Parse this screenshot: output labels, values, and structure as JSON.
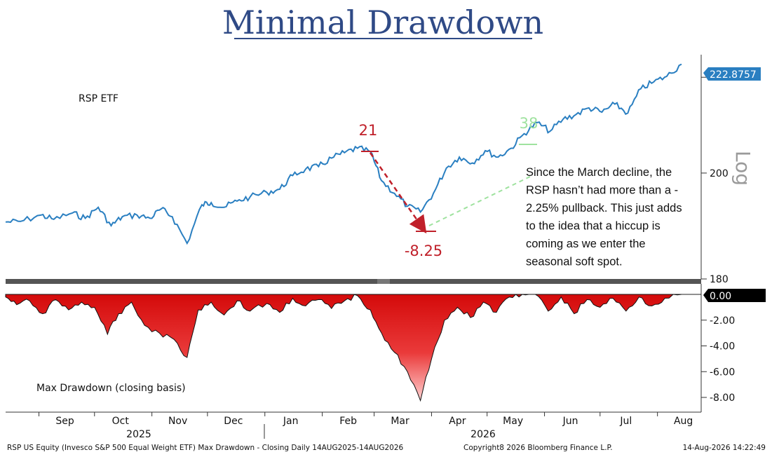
{
  "title": "Minimal Drawdown",
  "chart_data": [
    {
      "type": "line",
      "series_label": "RSP ETF",
      "scale": "log",
      "ylim": [
        180,
        225
      ],
      "y_ticks": [
        180,
        200,
        220
      ],
      "last_value": "222.8757",
      "color": "#2a7fc1",
      "x_range": [
        "2025-08-14",
        "2026-08-14"
      ],
      "points": [
        [
          "2025-08-14",
          190.5
        ],
        [
          "2025-08-22",
          190.6
        ],
        [
          "2025-09-02",
          191.8
        ],
        [
          "2025-09-09",
          191.0
        ],
        [
          "2025-09-19",
          192.2
        ],
        [
          "2025-09-26",
          191.2
        ],
        [
          "2025-10-03",
          193.3
        ],
        [
          "2025-10-10",
          189.8
        ],
        [
          "2025-10-16",
          191.5
        ],
        [
          "2025-10-24",
          191.8
        ],
        [
          "2025-10-31",
          191.2
        ],
        [
          "2025-11-06",
          193.0
        ],
        [
          "2025-11-12",
          191.5
        ],
        [
          "2025-11-20",
          186.5
        ],
        [
          "2025-11-28",
          193.8
        ],
        [
          "2025-12-03",
          194.2
        ],
        [
          "2025-12-10",
          193.3
        ],
        [
          "2025-12-17",
          194.5
        ],
        [
          "2025-12-24",
          195.3
        ],
        [
          "2026-01-02",
          196.2
        ],
        [
          "2026-01-09",
          196.8
        ],
        [
          "2026-01-16",
          199.5
        ],
        [
          "2026-01-23",
          200.8
        ],
        [
          "2026-01-30",
          201.3
        ],
        [
          "2026-02-06",
          203.0
        ],
        [
          "2026-02-13",
          204.1
        ],
        [
          "2026-02-20",
          205.0
        ],
        [
          "2026-02-27",
          204.3
        ],
        [
          "2026-03-05",
          198.5
        ],
        [
          "2026-03-12",
          196.0
        ],
        [
          "2026-03-19",
          193.5
        ],
        [
          "2026-03-26",
          192.4
        ],
        [
          "2026-04-02",
          196.0
        ],
        [
          "2026-04-09",
          201.0
        ],
        [
          "2026-04-16",
          203.2
        ],
        [
          "2026-04-23",
          202.0
        ],
        [
          "2026-04-30",
          204.5
        ],
        [
          "2026-05-07",
          203.2
        ],
        [
          "2026-05-14",
          205.0
        ],
        [
          "2026-05-21",
          208.0
        ],
        [
          "2026-05-28",
          210.3
        ],
        [
          "2026-06-04",
          208.5
        ],
        [
          "2026-06-11",
          211.0
        ],
        [
          "2026-06-18",
          212.0
        ],
        [
          "2026-06-25",
          213.4
        ],
        [
          "2026-07-02",
          212.5
        ],
        [
          "2026-07-09",
          214.2
        ],
        [
          "2026-07-16",
          212.3
        ],
        [
          "2026-07-23",
          217.5
        ],
        [
          "2026-07-30",
          219.0
        ],
        [
          "2026-08-06",
          220.2
        ],
        [
          "2026-08-14",
          222.8757
        ]
      ],
      "annotations": {
        "peak_label": "21",
        "trough_label": "-8.25",
        "rally_label": "38",
        "note": "Since the March decline, the RSP hasn’t had more than a -2.25% pullback. This just adds to the idea that a hiccup is coming as we enter the seasonal soft spot."
      },
      "side_label": "Log"
    },
    {
      "type": "area",
      "series_label": "Max Drawdown (closing basis)",
      "ylim": [
        -8.5,
        0
      ],
      "y_ticks": [
        "-2.00",
        "-4.00",
        "-6.00",
        "-8.00"
      ],
      "last_value": "0.00",
      "color": "#e02020",
      "points": [
        [
          "2025-08-14",
          -0.2
        ],
        [
          "2025-08-20",
          -0.8
        ],
        [
          "2025-08-27",
          -0.5
        ],
        [
          "2025-09-03",
          -1.5
        ],
        [
          "2025-09-10",
          -0.4
        ],
        [
          "2025-09-17",
          -1.2
        ],
        [
          "2025-09-24",
          -0.6
        ],
        [
          "2025-10-01",
          -1.0
        ],
        [
          "2025-10-08",
          -3.1
        ],
        [
          "2025-10-14",
          -1.5
        ],
        [
          "2025-10-21",
          -0.6
        ],
        [
          "2025-10-28",
          -2.4
        ],
        [
          "2025-11-05",
          -3.0
        ],
        [
          "2025-11-13",
          -3.5
        ],
        [
          "2025-11-20",
          -4.9
        ],
        [
          "2025-11-26",
          -1.2
        ],
        [
          "2025-12-03",
          -0.6
        ],
        [
          "2025-12-10",
          -1.6
        ],
        [
          "2025-12-17",
          -0.5
        ],
        [
          "2025-12-24",
          -1.3
        ],
        [
          "2026-01-02",
          -0.7
        ],
        [
          "2026-01-09",
          -1.4
        ],
        [
          "2026-01-16",
          -0.3
        ],
        [
          "2026-01-23",
          -0.9
        ],
        [
          "2026-01-30",
          -0.4
        ],
        [
          "2026-02-06",
          -1.1
        ],
        [
          "2026-02-13",
          -0.5
        ],
        [
          "2026-02-20",
          -0.1
        ],
        [
          "2026-02-27",
          -1.2
        ],
        [
          "2026-03-05",
          -3.0
        ],
        [
          "2026-03-12",
          -4.5
        ],
        [
          "2026-03-19",
          -6.0
        ],
        [
          "2026-03-26",
          -8.25
        ],
        [
          "2026-04-01",
          -5.0
        ],
        [
          "2026-04-08",
          -2.0
        ],
        [
          "2026-04-15",
          -1.0
        ],
        [
          "2026-04-22",
          -1.8
        ],
        [
          "2026-04-29",
          -0.6
        ],
        [
          "2026-05-06",
          -1.4
        ],
        [
          "2026-05-13",
          -0.2
        ],
        [
          "2026-05-20",
          0.0
        ],
        [
          "2026-05-27",
          0.0
        ],
        [
          "2026-06-03",
          -1.3
        ],
        [
          "2026-06-10",
          -0.2
        ],
        [
          "2026-06-17",
          -1.5
        ],
        [
          "2026-06-24",
          -0.4
        ],
        [
          "2026-07-01",
          -1.0
        ],
        [
          "2026-07-08",
          -0.3
        ],
        [
          "2026-07-15",
          -1.3
        ],
        [
          "2026-07-22",
          -0.2
        ],
        [
          "2026-07-29",
          -0.9
        ],
        [
          "2026-08-05",
          -0.3
        ],
        [
          "2026-08-14",
          0.0
        ]
      ]
    }
  ],
  "x_axis": {
    "months": [
      "Sep",
      "Oct",
      "Nov",
      "Dec",
      "Jan",
      "Feb",
      "Mar",
      "Apr",
      "May",
      "Jun",
      "Jul",
      "Aug"
    ],
    "years": [
      "2025",
      "2026"
    ]
  },
  "footer": {
    "left": "RSP US Equity (Invesco S&P 500 Equal Weight ETF) Max Drawdown - Closing Daily 14AUG2025-14AUG2026",
    "center": "Copyright8 2026 Bloomberg Finance L.P.",
    "right": "14-Aug-2026 14:22:49"
  },
  "colors": {
    "title": "#2f4a86",
    "price_line": "#2a7fc1",
    "drawdown_fill": "#e02020",
    "annotation_red": "#c0202a",
    "annotation_green": "#9fe29f",
    "last_value_badge": "#2a7fc1"
  }
}
